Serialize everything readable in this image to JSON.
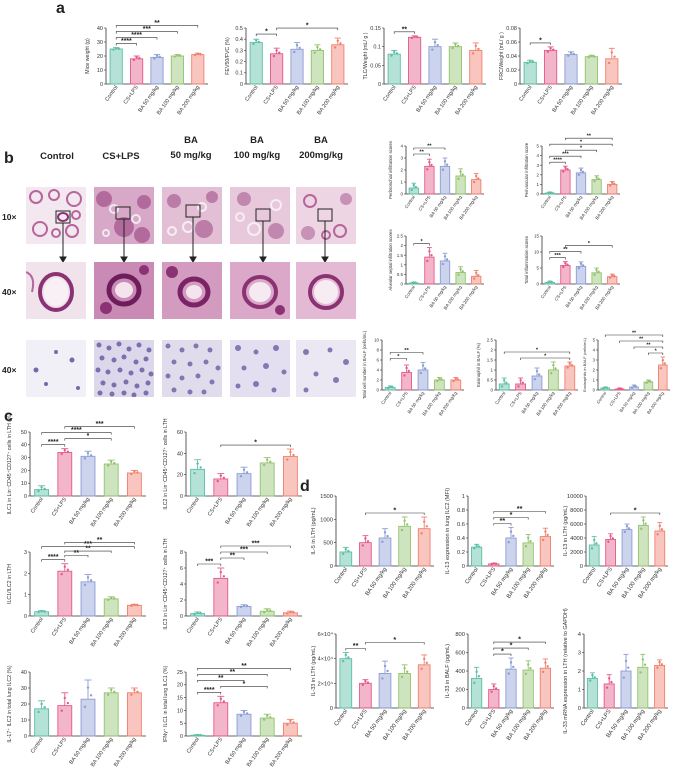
{
  "panel_labels": {
    "a": "a",
    "b": "b",
    "c": "c",
    "d": "d"
  },
  "micro": {
    "columns": [
      "Control",
      "CS+LPS",
      "BA\n50 mg/kg",
      "BA\n100 mg/kg",
      "BA\n200mg/kg"
    ],
    "rows": [
      "10×",
      "40×",
      "40×"
    ]
  },
  "colors": {
    "control": "#5cbfa6",
    "cslps": "#e55a8a",
    "ba50": "#8d9dd4",
    "ba100": "#93c36e",
    "ba200": "#f0806e",
    "he_bg": "#f1e6ee",
    "he_tissue": "#b7659d",
    "he_dark": "#8a3273",
    "cyto_bg": "#ece9f3",
    "cyto_cell": "#7568ad"
  },
  "chart_data": [
    {
      "id": "a1",
      "type": "bar",
      "categories": [
        "Control",
        "CS+LPS",
        "BA 50 mg/kg",
        "BA 100 mg/kg",
        "BA 200 mg/kg"
      ],
      "values": [
        25,
        18,
        19,
        20,
        21
      ],
      "errors": [
        1,
        2,
        2,
        1,
        1
      ],
      "ylim": [
        0,
        40
      ],
      "yticks": [
        0,
        10,
        20,
        30,
        40
      ],
      "ylabel": "Mice weight (g)",
      "sig": [
        {
          "a": 0,
          "b": 1,
          "t": "****"
        },
        {
          "a": 0,
          "b": 2,
          "t": "****"
        },
        {
          "a": 0,
          "b": 3,
          "t": "***"
        },
        {
          "a": 0,
          "b": 4,
          "t": "**"
        }
      ]
    },
    {
      "id": "a2",
      "type": "bar",
      "categories": [
        "Control",
        "CS+LPS",
        "BA 50 mg/kg",
        "BA 100 mg/kg",
        "BA 200 mg/kg"
      ],
      "values": [
        0.37,
        0.27,
        0.31,
        0.3,
        0.35
      ],
      "errors": [
        0.03,
        0.05,
        0.06,
        0.05,
        0.06
      ],
      "ylim": [
        0,
        0.5
      ],
      "yticks": [
        0,
        0.1,
        0.2,
        0.3,
        0.4,
        0.5
      ],
      "ylabel": "FEV50/FVC (%)",
      "sig": [
        {
          "a": 0,
          "b": 1,
          "t": "*"
        },
        {
          "a": 1,
          "b": 4,
          "t": "*"
        }
      ]
    },
    {
      "id": "a3",
      "type": "bar",
      "categories": [
        "Control",
        "CS+LPS",
        "BA 50 mg/kg",
        "BA 100 mg/kg",
        "BA 200 mg/kg"
      ],
      "values": [
        0.08,
        0.125,
        0.1,
        0.1,
        0.09
      ],
      "errors": [
        0.01,
        0.004,
        0.02,
        0.01,
        0.02
      ],
      "ylim": [
        0,
        0.15
      ],
      "yticks": [
        0,
        0.05,
        0.1,
        0.15
      ],
      "ylabel": "TLC/Weight (mL/ g )",
      "sig": [
        {
          "a": 0,
          "b": 1,
          "t": "**"
        }
      ]
    },
    {
      "id": "a4",
      "type": "bar",
      "categories": [
        "Control",
        "CS+LPS",
        "BA 50 mg/kg",
        "BA 100 mg/kg",
        "BA 200 mg/kg"
      ],
      "values": [
        0.031,
        0.048,
        0.042,
        0.039,
        0.036
      ],
      "errors": [
        0.003,
        0.005,
        0.004,
        0.002,
        0.015
      ],
      "ylim": [
        0,
        0.08
      ],
      "yticks": [
        0,
        0.02,
        0.04,
        0.06,
        0.08
      ],
      "ylabel": "FRC/Weight (mL/ g )",
      "sig": [
        {
          "a": 0,
          "b": 1,
          "t": "*"
        }
      ]
    },
    {
      "id": "b1",
      "type": "bar",
      "categories": [
        "Control",
        "CS+LPS",
        "BA 50 mg/kg",
        "BA 100 mg/kg",
        "BA 200 mg/kg"
      ],
      "values": [
        0.5,
        2.3,
        2.3,
        1.5,
        1.2
      ],
      "errors": [
        0.4,
        0.6,
        0.7,
        0.6,
        0.5
      ],
      "ylim": [
        0,
        4
      ],
      "yticks": [
        0,
        1,
        2,
        3,
        4
      ],
      "ylabel": "Peribronchial infiltration scores",
      "sig": [
        {
          "a": 0,
          "b": 1,
          "t": "**"
        },
        {
          "a": 0,
          "b": 2,
          "t": "**"
        }
      ]
    },
    {
      "id": "b2",
      "type": "bar",
      "categories": [
        "Control",
        "CS+LPS",
        "BA 50 mg/kg",
        "BA 100 mg/kg",
        "BA 200 mg/kg"
      ],
      "values": [
        0.1,
        2.5,
        2.2,
        1.5,
        1
      ],
      "errors": [
        0.1,
        0.4,
        0.5,
        0.4,
        0.3
      ],
      "ylim": [
        0,
        5
      ],
      "yticks": [
        0,
        1,
        2,
        3,
        4,
        5
      ],
      "ylabel": "Perivascular infiltration score",
      "sig": [
        {
          "a": 0,
          "b": 1,
          "t": "****"
        },
        {
          "a": 0,
          "b": 2,
          "t": "***"
        },
        {
          "a": 1,
          "b": 3,
          "t": "*"
        },
        {
          "a": 0,
          "b": 4,
          "t": "*"
        },
        {
          "a": 1,
          "b": 4,
          "t": "**"
        }
      ]
    },
    {
      "id": "b3",
      "type": "bar",
      "categories": [
        "Control",
        "CS+LPS",
        "BA 50 mg/kg",
        "BA 100 mg/kg",
        "BA 200 mg/kg"
      ],
      "values": [
        0.05,
        1.4,
        1.2,
        0.6,
        0.4
      ],
      "errors": [
        0.05,
        0.5,
        0.4,
        0.3,
        0.3
      ],
      "ylim": [
        0,
        2.5
      ],
      "yticks": [
        0,
        0.5,
        1,
        1.5,
        2,
        2.5
      ],
      "ylabel": "Alveolar septal infiltration scores",
      "sig": [
        {
          "a": 0,
          "b": 1,
          "t": "*"
        }
      ]
    },
    {
      "id": "b4",
      "type": "bar",
      "categories": [
        "Control",
        "CS+LPS",
        "BA 50 mg/kg",
        "BA 100 mg/kg",
        "BA 200 mg/kg"
      ],
      "values": [
        0.5,
        5.8,
        5.5,
        3.5,
        2.3
      ],
      "errors": [
        0.4,
        1.2,
        1.4,
        1.5,
        0.8
      ],
      "ylim": [
        0,
        15
      ],
      "yticks": [
        0,
        5,
        10,
        15
      ],
      "ylabel": "Total inflammation scores",
      "sig": [
        {
          "a": 0,
          "b": 1,
          "t": "***"
        },
        {
          "a": 0,
          "b": 2,
          "t": "**"
        },
        {
          "a": 1,
          "b": 4,
          "t": "*"
        }
      ]
    },
    {
      "id": "b5",
      "type": "bar",
      "categories": [
        "Control",
        "CS+LPS",
        "BA 50 mg/kg",
        "BA 100 mg/kg",
        "BA 200 mg/kg"
      ],
      "values": [
        0.5,
        3.5,
        4,
        2,
        2
      ],
      "errors": [
        0.3,
        1.5,
        1.5,
        0.5,
        0.5
      ],
      "ylim": [
        0,
        10
      ],
      "yticks": [
        0,
        2,
        4,
        6,
        8,
        10
      ],
      "ylabel": "Total cell number in BALF (cells/mL)",
      "sig": [
        {
          "a": 0,
          "b": 1,
          "t": "*"
        },
        {
          "a": 0,
          "b": 2,
          "t": "**"
        }
      ]
    },
    {
      "id": "b6",
      "type": "bar",
      "categories": [
        "Control",
        "CS+LPS",
        "BA 50 mg/kg",
        "BA 100 mg/kg",
        "BA 200 mg/kg"
      ],
      "values": [
        0.3,
        0.3,
        0.7,
        1,
        1.2
      ],
      "errors": [
        0.3,
        0.3,
        0.4,
        0.4,
        0.2
      ],
      "ylim": [
        0,
        2.5
      ],
      "yticks": [
        0,
        0.5,
        1,
        1.5,
        2,
        2.5
      ],
      "ylabel": "Eosinophil in BALF (%)",
      "sig": [
        {
          "a": 1,
          "b": 4,
          "t": "*"
        },
        {
          "a": 0,
          "b": 4,
          "t": "*"
        }
      ]
    },
    {
      "id": "b7",
      "type": "bar",
      "categories": [
        "Control",
        "CS+LPS",
        "BA 50 mg/kg",
        "BA 100 mg/kg",
        "BA 200 mg/kg"
      ],
      "values": [
        0.2,
        0.1,
        0.3,
        0.8,
        2.5
      ],
      "errors": [
        0.1,
        0.1,
        0.2,
        0.2,
        0.8
      ],
      "ylim": [
        0,
        5
      ],
      "yticks": [
        0,
        1,
        2,
        3,
        4,
        5
      ],
      "ylabel": "Eosinophils in BALF (cells/mL)",
      "sig": [
        {
          "a": 3,
          "b": 4,
          "t": "*"
        },
        {
          "a": 2,
          "b": 4,
          "t": "**"
        },
        {
          "a": 1,
          "b": 4,
          "t": "**"
        },
        {
          "a": 0,
          "b": 4,
          "t": "**"
        }
      ]
    },
    {
      "id": "c1",
      "type": "bar",
      "categories": [
        "Control",
        "CS+LPS",
        "BA 50 mg/kg",
        "BA 100 mg/kg",
        "BA 200 mg/kg"
      ],
      "values": [
        5,
        34,
        31,
        25,
        18
      ],
      "errors": [
        3,
        3,
        4,
        3,
        2
      ],
      "ylim": [
        0,
        50
      ],
      "yticks": [
        0,
        10,
        20,
        30,
        40,
        50
      ],
      "ylabel": "ILC1 in Lin⁻CD45⁺CD127⁺ cells in LTH (%)",
      "sig": [
        {
          "a": 0,
          "b": 1,
          "t": "****"
        },
        {
          "a": 1,
          "b": 3,
          "t": "*"
        },
        {
          "a": 0,
          "b": 3,
          "t": "****"
        },
        {
          "a": 1,
          "b": 4,
          "t": "***"
        }
      ]
    },
    {
      "id": "c2",
      "type": "bar",
      "categories": [
        "Control",
        "CS+LPS",
        "BA 50 mg/kg",
        "BA 100 mg/kg",
        "BA 200 mg/kg"
      ],
      "values": [
        25,
        16,
        21,
        31,
        37
      ],
      "errors": [
        9,
        5,
        6,
        5,
        7
      ],
      "ylim": [
        0,
        60
      ],
      "yticks": [
        0,
        20,
        40,
        60
      ],
      "ylabel": "ILC2 in Lin⁻CD45⁺CD127⁺ cells in LTH",
      "sig": [
        {
          "a": 1,
          "b": 4,
          "t": "*"
        }
      ]
    },
    {
      "id": "c3",
      "type": "bar",
      "categories": [
        "Control",
        "CS+LPS",
        "BA 50 mg/kg",
        "BA 100 mg/kg",
        "BA 200 mg/kg"
      ],
      "values": [
        0.2,
        2.1,
        1.6,
        0.8,
        0.5
      ],
      "errors": [
        0.05,
        0.35,
        0.35,
        0.1,
        0.05
      ],
      "ylim": [
        0,
        3
      ],
      "yticks": [
        0,
        1,
        2,
        3
      ],
      "ylabel": "ILC1/ILC2 in LTH",
      "sig": [
        {
          "a": 0,
          "b": 1,
          "t": "****"
        },
        {
          "a": 1,
          "b": 2,
          "t": "**"
        },
        {
          "a": 1,
          "b": 3,
          "t": "**"
        },
        {
          "a": 0,
          "b": 4,
          "t": "***"
        },
        {
          "a": 1,
          "b": 4,
          "t": "**"
        }
      ]
    },
    {
      "id": "c4",
      "type": "bar",
      "categories": [
        "Control",
        "CS+LPS",
        "BA 50 mg/kg",
        "BA 100 mg/kg",
        "BA 200 mg/kg"
      ],
      "values": [
        0.3,
        4.7,
        1.2,
        0.6,
        0.4
      ],
      "errors": [
        0.2,
        1.3,
        0.2,
        0.3,
        0.2
      ],
      "ylim": [
        0,
        8
      ],
      "yticks": [
        0,
        2,
        4,
        6,
        8
      ],
      "ylabel": "ILC3 in Lin⁻CD45⁺CD127⁺ cells in LTH",
      "sig": [
        {
          "a": 0,
          "b": 1,
          "t": "***"
        },
        {
          "a": 1,
          "b": 2,
          "t": "**"
        },
        {
          "a": 1,
          "b": 3,
          "t": "***"
        },
        {
          "a": 1,
          "b": 4,
          "t": "***"
        }
      ]
    },
    {
      "id": "c5",
      "type": "bar",
      "categories": [
        "Control",
        "CS+LPS",
        "BA 50 mg/kg",
        "BA 100 mg/kg",
        "BA 200 mg/kg"
      ],
      "values": [
        17,
        19,
        23,
        27,
        27
      ],
      "errors": [
        5,
        8,
        12,
        3,
        3
      ],
      "ylim": [
        0,
        40
      ],
      "yticks": [
        0,
        10,
        20,
        30,
        40
      ],
      "ylabel": "IL-17⁺ ILC2 in total lung ILC2 (%)",
      "sig": []
    },
    {
      "id": "c6",
      "type": "bar",
      "categories": [
        "Control",
        "CS+LPS",
        "BA 50 mg/kg",
        "BA 100 mg/kg",
        "BA 200 mg/kg"
      ],
      "values": [
        0.3,
        13,
        8.5,
        7,
        5
      ],
      "errors": [
        0.2,
        2.5,
        1.5,
        1.5,
        1.5
      ],
      "ylim": [
        0,
        25
      ],
      "yticks": [
        0,
        5,
        10,
        15,
        20,
        25
      ],
      "ylabel": "IFNγ⁺ ILC1 in total lung ILC1 (%)",
      "sig": [
        {
          "a": 0,
          "b": 1,
          "t": "****"
        },
        {
          "a": 1,
          "b": 3,
          "t": "*"
        },
        {
          "a": 0,
          "b": 2,
          "t": "**"
        },
        {
          "a": 0,
          "b": 3,
          "t": "**"
        },
        {
          "a": 0,
          "b": 4,
          "t": "**"
        }
      ]
    },
    {
      "id": "d1",
      "type": "bar",
      "categories": [
        "Control",
        "CS+LPS",
        "BA 50 mg/kg",
        "BA 100 mg/kg",
        "BA 200 mg/kg"
      ],
      "values": [
        300,
        500,
        600,
        850,
        800
      ],
      "errors": [
        100,
        150,
        200,
        200,
        250
      ],
      "ylim": [
        0,
        1500
      ],
      "yticks": [
        0,
        500,
        1000,
        1500
      ],
      "ylabel": "IL-5 in LTH (pg/mL)",
      "sig": [
        {
          "a": 1,
          "b": 4,
          "t": "*"
        }
      ]
    },
    {
      "id": "d2",
      "type": "bar",
      "categories": [
        "Control",
        "CS+LPS",
        "BA 50 mg/kg",
        "BA 100 mg/kg",
        "BA 200 mg/kg"
      ],
      "values": [
        0.27,
        0.03,
        0.4,
        0.33,
        0.42
      ],
      "errors": [
        0.04,
        0.01,
        0.15,
        0.12,
        0.12
      ],
      "ylim": [
        0,
        1
      ],
      "yticks": [
        0,
        0.2,
        0.4,
        0.6,
        0.8,
        1
      ],
      "ylabel": "IL-13 expression in lung ILC2 (MFI)",
      "sig": [
        {
          "a": 1,
          "b": 2,
          "t": "**"
        },
        {
          "a": 1,
          "b": 3,
          "t": "*"
        },
        {
          "a": 1,
          "b": 4,
          "t": "**"
        }
      ]
    },
    {
      "id": "d3",
      "type": "bar",
      "categories": [
        "Control",
        "CS+LPS",
        "BA 50 mg/kg",
        "BA 100 mg/kg",
        "BA 200 mg/kg"
      ],
      "values": [
        3000,
        3800,
        5200,
        5800,
        5000
      ],
      "errors": [
        1200,
        800,
        800,
        1200,
        1200
      ],
      "ylim": [
        0,
        10000
      ],
      "yticks": [
        0,
        2000,
        4000,
        6000,
        8000,
        10000
      ],
      "ylabel": "IL-13 in LTH (pg/mL)",
      "sig": [
        {
          "a": 1,
          "b": 4,
          "t": "*"
        }
      ]
    },
    {
      "id": "d4",
      "type": "bar",
      "categories": [
        "Control",
        "CS+LPS",
        "BA 50 mg/kg",
        "BA 100 mg/kg",
        "BA 200 mg/kg"
      ],
      "values": [
        40000,
        20000,
        28000,
        28000,
        35000
      ],
      "errors": [
        5000,
        3000,
        10000,
        7000,
        8000
      ],
      "ylim": [
        0,
        60000
      ],
      "yticks": [
        0,
        20000,
        40000,
        60000
      ],
      "ytick_labels": [
        "0",
        "2×10⁴",
        "4×10⁴",
        "6×10⁴"
      ],
      "ylabel": "IL-33 in LTH (pg/mL)",
      "sig": [
        {
          "a": 0,
          "b": 1,
          "t": "**"
        },
        {
          "a": 1,
          "b": 4,
          "t": "*"
        }
      ]
    },
    {
      "id": "d5",
      "type": "bar",
      "categories": [
        "Control",
        "CS+LPS",
        "BA 50 mg/kg",
        "BA 100 mg/kg",
        "BA 200 mg/kg"
      ],
      "values": [
        320,
        200,
        420,
        410,
        430
      ],
      "errors": [
        120,
        60,
        120,
        100,
        100
      ],
      "ylim": [
        0,
        800
      ],
      "yticks": [
        0,
        200,
        400,
        600,
        800
      ],
      "ylabel": "IL-33 in BALF (pg/mL)",
      "sig": [
        {
          "a": 1,
          "b": 2,
          "t": "*"
        },
        {
          "a": 1,
          "b": 3,
          "t": "*"
        },
        {
          "a": 1,
          "b": 4,
          "t": "*"
        }
      ]
    },
    {
      "id": "d6",
      "type": "bar",
      "categories": [
        "Control",
        "CS+LPS",
        "BA 50 mg/kg",
        "BA 100 mg/kg",
        "BA 200 mg/kg"
      ],
      "values": [
        1.6,
        1.3,
        2,
        2.2,
        2.3
      ],
      "errors": [
        0.3,
        0.5,
        0.9,
        0.7,
        0.3
      ],
      "ylim": [
        0,
        4
      ],
      "yticks": [
        0,
        1,
        2,
        3,
        4
      ],
      "ylabel": "IL-33 mRNA expression in LTH (relative to GAPDH)",
      "sig": []
    }
  ]
}
